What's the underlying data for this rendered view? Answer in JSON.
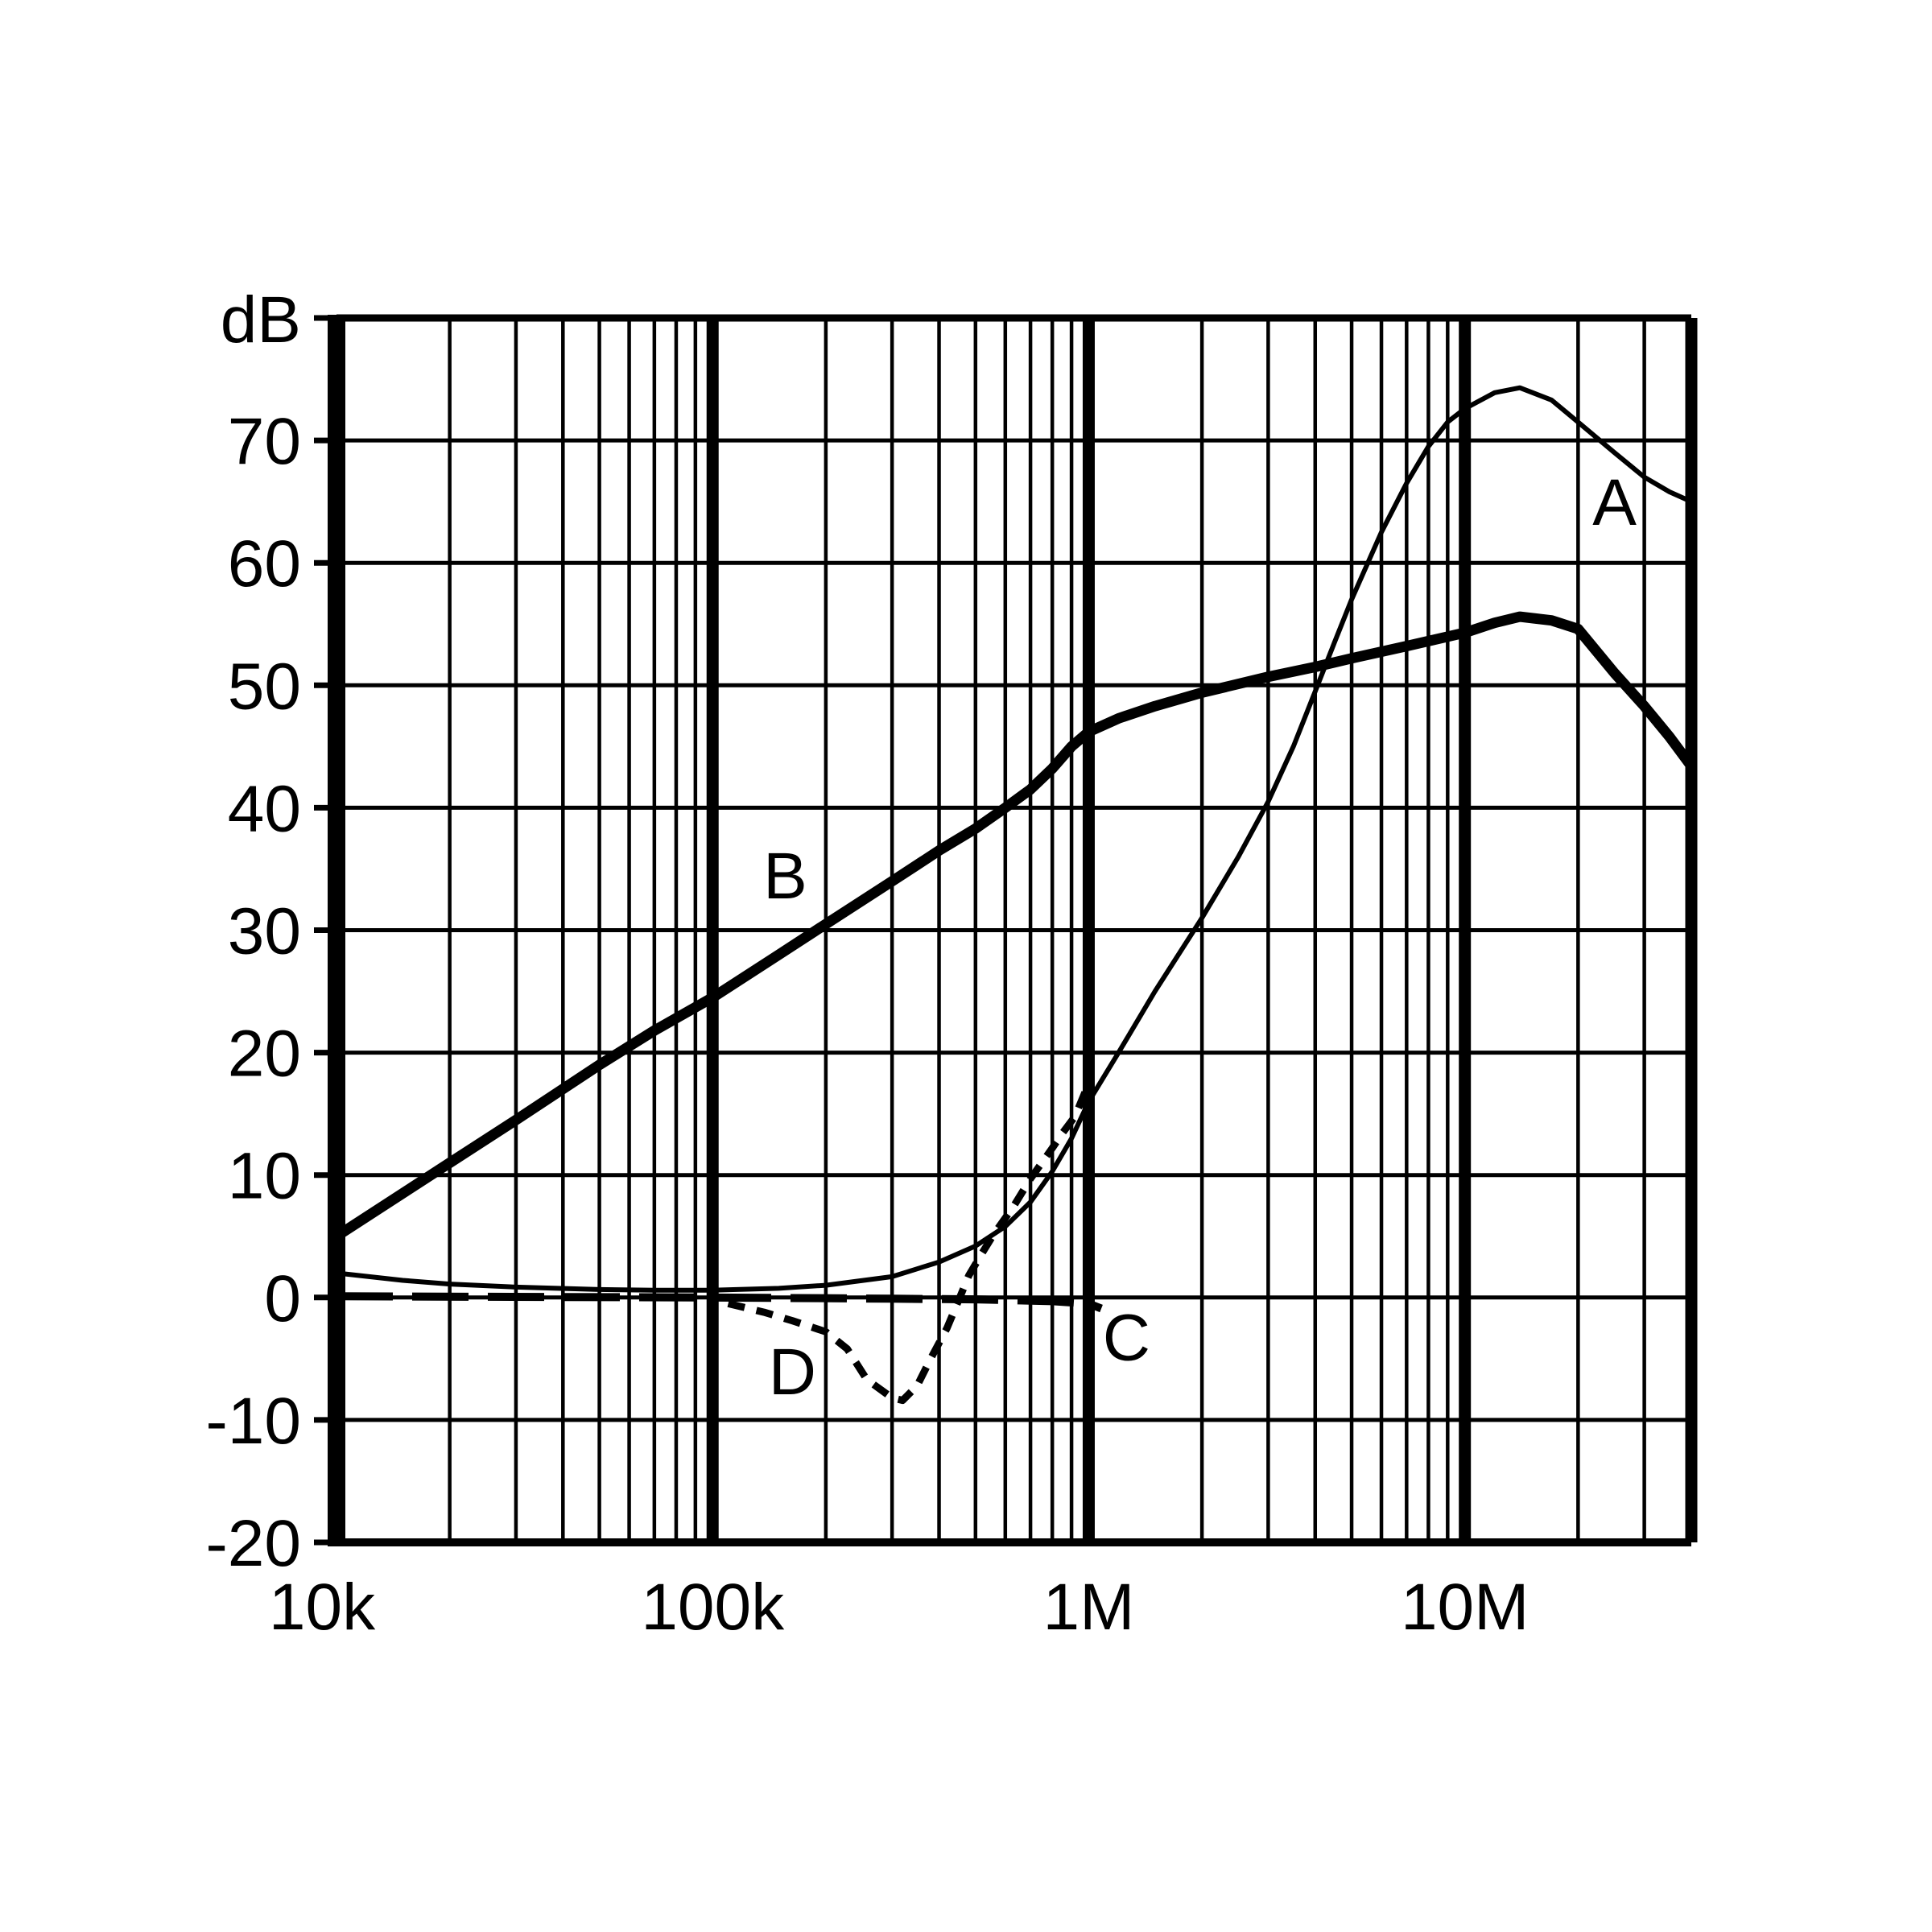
{
  "page": {
    "background_color": "#ffffff",
    "foreground_color": "#000000"
  },
  "chart_data": {
    "type": "line",
    "title": "",
    "x_axis": {
      "scale": "log",
      "min": 10000,
      "max": 40000000,
      "unit": "Hz",
      "tick_labels": [
        {
          "value": 10000,
          "label": "10k"
        },
        {
          "value": 100000,
          "label": "100k"
        },
        {
          "value": 1000000,
          "label": "1M"
        },
        {
          "value": 10000000,
          "label": "10M"
        }
      ]
    },
    "y_axis": {
      "label": "dB",
      "min": -20,
      "max": 80,
      "tick_step": 10,
      "tick_labels": [
        "-20",
        "-10",
        "0",
        "10",
        "20",
        "30",
        "40",
        "50",
        "60",
        "70"
      ]
    },
    "grid": {
      "horizontal_every_db": 10,
      "vertical_log_minor": true,
      "legend": "none"
    },
    "series": [
      {
        "name": "A",
        "style": "solid-thin",
        "label": "A",
        "label_pos": {
          "f": 25000000,
          "db": 65
        },
        "points": [
          [
            10000,
            2.0
          ],
          [
            15000,
            1.4
          ],
          [
            20000,
            1.1
          ],
          [
            30000,
            0.85
          ],
          [
            50000,
            0.65
          ],
          [
            70000,
            0.6
          ],
          [
            100000,
            0.6
          ],
          [
            150000,
            0.75
          ],
          [
            200000,
            1.0
          ],
          [
            300000,
            1.7
          ],
          [
            400000,
            2.9
          ],
          [
            500000,
            4.2
          ],
          [
            600000,
            5.8
          ],
          [
            700000,
            7.8
          ],
          [
            800000,
            10.3
          ],
          [
            900000,
            13.0
          ],
          [
            1000000,
            16.0
          ],
          [
            1200000,
            20.0
          ],
          [
            1500000,
            25.0
          ],
          [
            2000000,
            31.0
          ],
          [
            2500000,
            36.0
          ],
          [
            3000000,
            40.5
          ],
          [
            3500000,
            45.0
          ],
          [
            4000000,
            49.5
          ],
          [
            4500000,
            53.5
          ],
          [
            5000000,
            57.0
          ],
          [
            6000000,
            62.5
          ],
          [
            7000000,
            66.5
          ],
          [
            8000000,
            69.5
          ],
          [
            9000000,
            71.5
          ],
          [
            10000000,
            72.6
          ],
          [
            12000000,
            73.9
          ],
          [
            14000000,
            74.3
          ],
          [
            17000000,
            73.3
          ],
          [
            20000000,
            71.5
          ],
          [
            25000000,
            69.0
          ],
          [
            30000000,
            67.0
          ],
          [
            35000000,
            65.8
          ],
          [
            40000000,
            65.0
          ]
        ]
      },
      {
        "name": "B",
        "style": "solid-thick",
        "label": "B",
        "label_pos": {
          "f": 156000,
          "db": 34.5
        },
        "points": [
          [
            10000,
            5.0
          ],
          [
            20000,
            11.0
          ],
          [
            30000,
            14.5
          ],
          [
            50000,
            19.0
          ],
          [
            70000,
            21.8
          ],
          [
            100000,
            24.5
          ],
          [
            150000,
            28.0
          ],
          [
            200000,
            30.5
          ],
          [
            300000,
            34.0
          ],
          [
            400000,
            36.5
          ],
          [
            500000,
            38.3
          ],
          [
            600000,
            40.0
          ],
          [
            700000,
            41.5
          ],
          [
            800000,
            43.2
          ],
          [
            900000,
            45.0
          ],
          [
            1000000,
            46.2
          ],
          [
            1200000,
            47.3
          ],
          [
            1500000,
            48.3
          ],
          [
            2000000,
            49.4
          ],
          [
            3000000,
            50.7
          ],
          [
            4000000,
            51.5
          ],
          [
            5000000,
            52.2
          ],
          [
            7000000,
            53.2
          ],
          [
            10000000,
            54.3
          ],
          [
            12000000,
            55.1
          ],
          [
            14000000,
            55.6
          ],
          [
            17000000,
            55.3
          ],
          [
            20000000,
            54.6
          ],
          [
            25000000,
            51.0
          ],
          [
            30000000,
            48.3
          ],
          [
            35000000,
            45.8
          ],
          [
            40000000,
            43.4
          ]
        ]
      },
      {
        "name": "C",
        "style": "dash-long",
        "label": "C",
        "label_pos": {
          "f": 1260000,
          "db": -3.2
        },
        "points": [
          [
            10000,
            0.1
          ],
          [
            100000,
            0.0
          ],
          [
            300000,
            -0.1
          ],
          [
            500000,
            -0.15
          ],
          [
            800000,
            -0.3
          ],
          [
            1000000,
            -0.5
          ],
          [
            1080000,
            -0.9
          ]
        ]
      },
      {
        "name": "D",
        "style": "dash-short",
        "label": "D",
        "label_pos": {
          "f": 163000,
          "db": -6.0
        },
        "points": [
          [
            110000,
            -0.5
          ],
          [
            137000,
            -1.2
          ],
          [
            163000,
            -1.9
          ],
          [
            200000,
            -2.8
          ],
          [
            228000,
            -4.2
          ],
          [
            257000,
            -6.7
          ],
          [
            300000,
            -8.2
          ],
          [
            320000,
            -8.4
          ],
          [
            350000,
            -7.2
          ],
          [
            380000,
            -5.0
          ],
          [
            420000,
            -2.5
          ],
          [
            450000,
            -0.3
          ],
          [
            480000,
            1.8
          ],
          [
            520000,
            3.6
          ],
          [
            560000,
            5.2
          ],
          [
            630000,
            7.4
          ],
          [
            700000,
            9.7
          ],
          [
            800000,
            12.2
          ],
          [
            850000,
            13.4
          ],
          [
            920000,
            14.8
          ],
          [
            1000000,
            17.5
          ]
        ]
      }
    ]
  }
}
